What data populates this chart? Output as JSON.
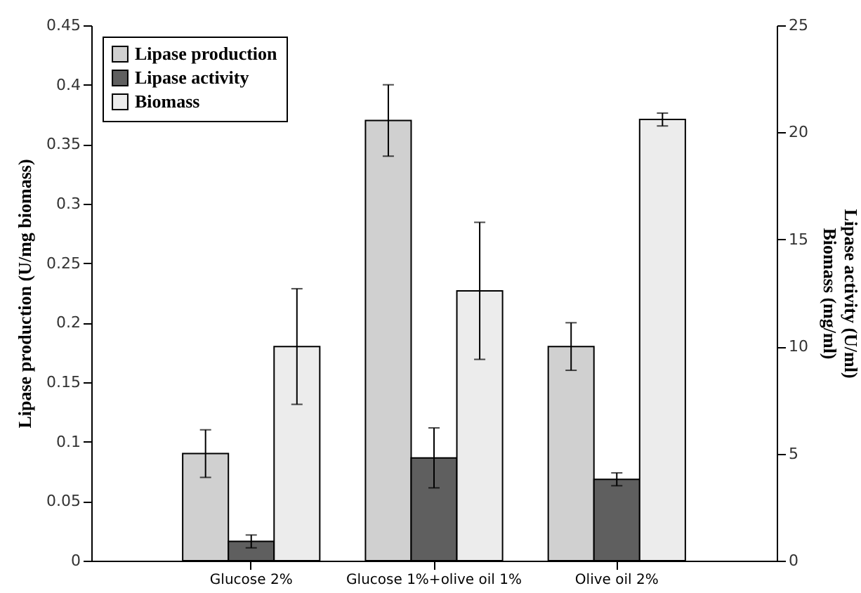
{
  "chart_data": {
    "type": "bar",
    "categories": [
      "Glucose 2%",
      "Glucose 1%+olive oil 1%",
      "Olive oil 2%"
    ],
    "ylabel": "Lipase production (U/mg biomass)",
    "y2label": "Lipase activity (U/ml)\nBiomass (mg/ml)",
    "series": [
      {
        "name": "Lipase production",
        "color": "#d0d0d0",
        "values": [
          0.09,
          0.37,
          0.18
        ],
        "errors": [
          0.02,
          0.03,
          0.02
        ]
      },
      {
        "name": "Lipase activity",
        "color": "#5f5f5f",
        "axis": "y2",
        "values": [
          0.9,
          4.8,
          3.8
        ],
        "errors": [
          0.3,
          1.4,
          0.3
        ]
      },
      {
        "name": "Biomass",
        "color": "#ececec",
        "axis": "y2",
        "values": [
          10,
          12.6,
          20.6
        ],
        "errors": [
          2.7,
          3.2,
          0.3
        ]
      }
    ],
    "ylim": [
      0,
      0.45
    ],
    "yticks": [
      0,
      0.05,
      0.1,
      0.15,
      0.2,
      0.25,
      0.3,
      0.35,
      0.4,
      0.45
    ],
    "y2lim": [
      0,
      25
    ],
    "y2ticks": [
      0,
      5,
      10,
      15,
      20,
      25
    ],
    "legend": "top left",
    "grid": false
  }
}
